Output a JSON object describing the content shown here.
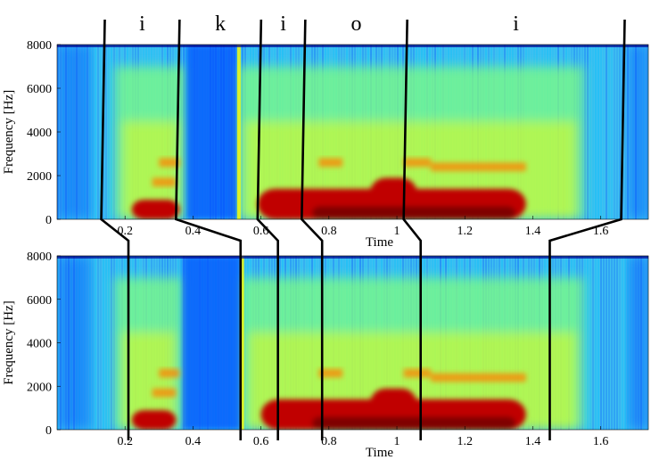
{
  "chart_data": {
    "type": "heatmap",
    "description_free": true,
    "segments": [
      "i",
      "k",
      "i",
      "o",
      "i"
    ],
    "boundaries_top": [
      0.13,
      0.35,
      0.59,
      0.72,
      1.02,
      1.66
    ],
    "boundaries_bottom": [
      0.21,
      0.54,
      0.65,
      0.78,
      1.07,
      1.45
    ],
    "plots": [
      {
        "xlabel": "Time",
        "ylabel": "Frequency [Hz]",
        "xlim": [
          0.0,
          1.74
        ],
        "ylim": [
          0,
          8000
        ],
        "xticks": [
          "0.2",
          "0.4",
          "0.6",
          "0.8",
          "1",
          "1.2",
          "1.4",
          "1.6"
        ],
        "yticks": [
          "0",
          "2000",
          "4000",
          "6000",
          "8000"
        ],
        "closure": [
          0.38,
          0.53
        ],
        "burst_time": 0.535
      },
      {
        "xlabel": "Time",
        "ylabel": "Frequency [Hz]",
        "xlim": [
          0.0,
          1.74
        ],
        "ylim": [
          0,
          8000
        ],
        "xticks": [
          "0.2",
          "0.4",
          "0.6",
          "0.8",
          "1",
          "1.2",
          "1.4",
          "1.6"
        ],
        "yticks": [
          "0",
          "2000",
          "4000",
          "6000",
          "8000"
        ],
        "closure": [
          0.37,
          0.54
        ],
        "burst_time": 0.545
      }
    ],
    "colormap": [
      "#00008f",
      "#0050ff",
      "#00c0ff",
      "#80ff80",
      "#ffff00",
      "#ff8000",
      "#c00000",
      "#800000"
    ]
  }
}
